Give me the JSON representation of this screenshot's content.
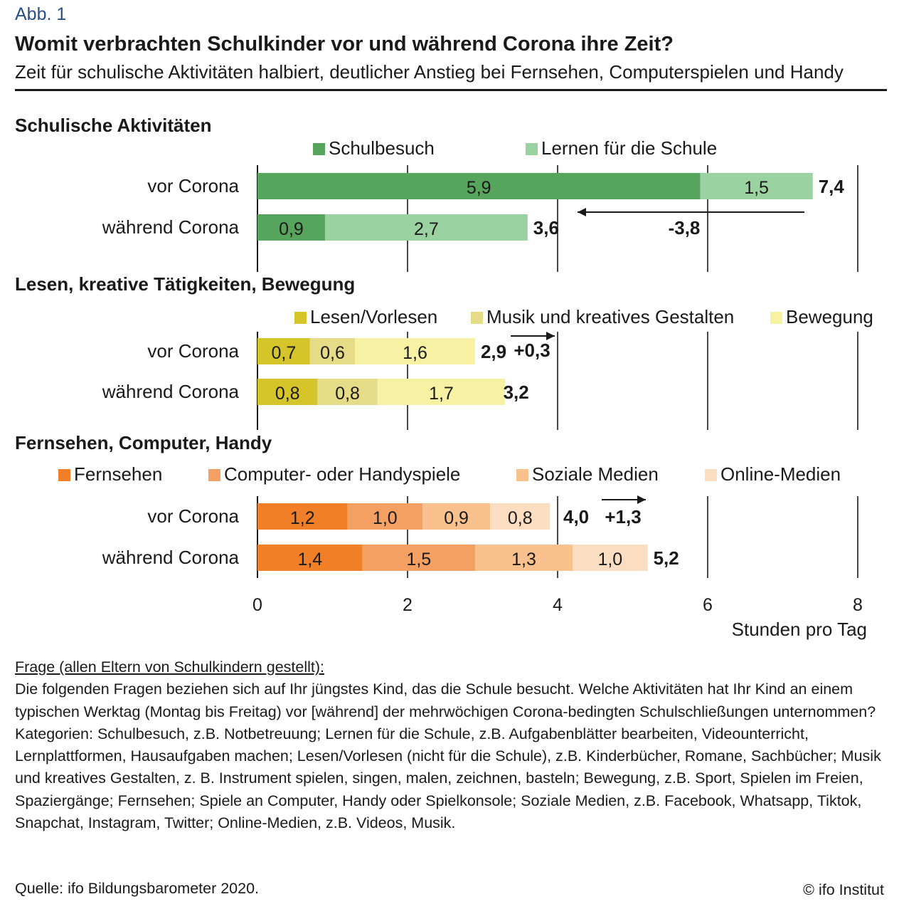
{
  "header": {
    "figure_label": "Abb. 1",
    "title": "Womit verbrachten Schulkinder vor und während Corona ihre Zeit?",
    "subtitle": "Zeit für schulische Aktivitäten halbiert, deutlicher Anstieg bei Fernsehen, Computerspielen und Handy"
  },
  "chart_data": {
    "type": "bar",
    "orientation": "horizontal-stacked",
    "xlabel": "Stunden pro Tag",
    "xlim": [
      0,
      8
    ],
    "xticks": [
      0,
      2,
      4,
      6,
      8
    ],
    "xtick_labels": [
      "0",
      "2",
      "4",
      "6",
      "8"
    ],
    "grid": true,
    "groups": [
      {
        "title": "Schulische Aktivitäten",
        "series": [
          {
            "name": "Schulbesuch",
            "color": "#57a45c"
          },
          {
            "name": "Lernen für die Schule",
            "color": "#9ad2a1"
          }
        ],
        "rows": [
          {
            "label": "vor Corona",
            "values": [
              5.9,
              1.5
            ],
            "value_labels": [
              "5,9",
              "1,5"
            ],
            "total": 7.4,
            "total_label": "7,4"
          },
          {
            "label": "während Corona",
            "values": [
              0.9,
              2.7
            ],
            "value_labels": [
              "0,9",
              "2,7"
            ],
            "total": 3.6,
            "total_label": "3,6"
          }
        ],
        "change": {
          "label": "-3,8",
          "value": -3.8,
          "from": 7.4,
          "to": 3.6
        }
      },
      {
        "title": "Lesen, kreative Tätigkeiten, Bewegung",
        "series": [
          {
            "name": "Lesen/Vorlesen",
            "color": "#d5c52b"
          },
          {
            "name": "Musik und kreatives Gestalten",
            "color": "#e6db86"
          },
          {
            "name": "Bewegung",
            "color": "#f6f1a3"
          }
        ],
        "rows": [
          {
            "label": "vor Corona",
            "values": [
              0.7,
              0.6,
              1.6
            ],
            "value_labels": [
              "0,7",
              "0,6",
              "1,6"
            ],
            "total": 2.9,
            "total_label": "2,9"
          },
          {
            "label": "während Corona",
            "values": [
              0.8,
              0.8,
              1.7
            ],
            "value_labels": [
              "0,8",
              "0,8",
              "1,7"
            ],
            "total": 3.2,
            "total_label": "3,2"
          }
        ],
        "change": {
          "label": "+0,3",
          "value": 0.3,
          "from": 2.9,
          "to": 3.2
        }
      },
      {
        "title": "Fernsehen, Computer, Handy",
        "series": [
          {
            "name": "Fernsehen",
            "color": "#f07f27"
          },
          {
            "name": "Computer- oder Handyspiele",
            "color": "#f4a062"
          },
          {
            "name": "Soziale Medien",
            "color": "#f8c18e"
          },
          {
            "name": "Online-Medien",
            "color": "#fbddc2"
          }
        ],
        "rows": [
          {
            "label": "vor Corona",
            "values": [
              1.2,
              1.0,
              0.9,
              0.8
            ],
            "value_labels": [
              "1,2",
              "1,0",
              "0,9",
              "0,8"
            ],
            "total": 4.0,
            "total_label": "4,0"
          },
          {
            "label": "während Corona",
            "values": [
              1.4,
              1.5,
              1.3,
              1.0
            ],
            "value_labels": [
              "1,4",
              "1,5",
              "1,3",
              "1,0"
            ],
            "total": 5.2,
            "total_label": "5,2"
          }
        ],
        "change": {
          "label": "+1,3",
          "value": 1.3,
          "from": 4.0,
          "to": 5.2
        }
      }
    ]
  },
  "notes": {
    "question_heading": "Frage (allen Eltern von Schulkindern gestellt):",
    "question_text": "Die folgenden Fragen beziehen sich auf Ihr jüngstes Kind, das die Schule besucht. Welche Aktivitäten hat Ihr Kind an einem typischen Werktag (Montag bis Freitag) vor [während] der mehrwöchigen Corona-bedingten Schulschließungen unternommen?",
    "categories_text": "Kategorien: Schulbesuch, z.B. Notbetreuung; Lernen für die Schule, z.B. Aufgabenblätter bearbeiten, Videounterricht, Lernplattformen, Hausaufgaben machen; Lesen/Vorlesen (nicht für die Schule), z.B. Kinderbücher, Romane, Sachbücher; Musik und kreatives Gestalten, z. B. Instrument spielen, singen, malen, zeichnen, basteln; Bewegung, z.B. Sport, Spielen im Freien, Spaziergänge; Fernsehen; Spiele an Computer, Handy oder Spielkonsole; Soziale Medien, z.B. Facebook, Whatsapp, Tiktok, Snapchat, Instagram, Twitter; Online-Medien, z.B. Videos, Musik."
  },
  "footer": {
    "source": "Quelle: ifo Bildungsbarometer 2020.",
    "copyright": "© ifo Institut"
  }
}
